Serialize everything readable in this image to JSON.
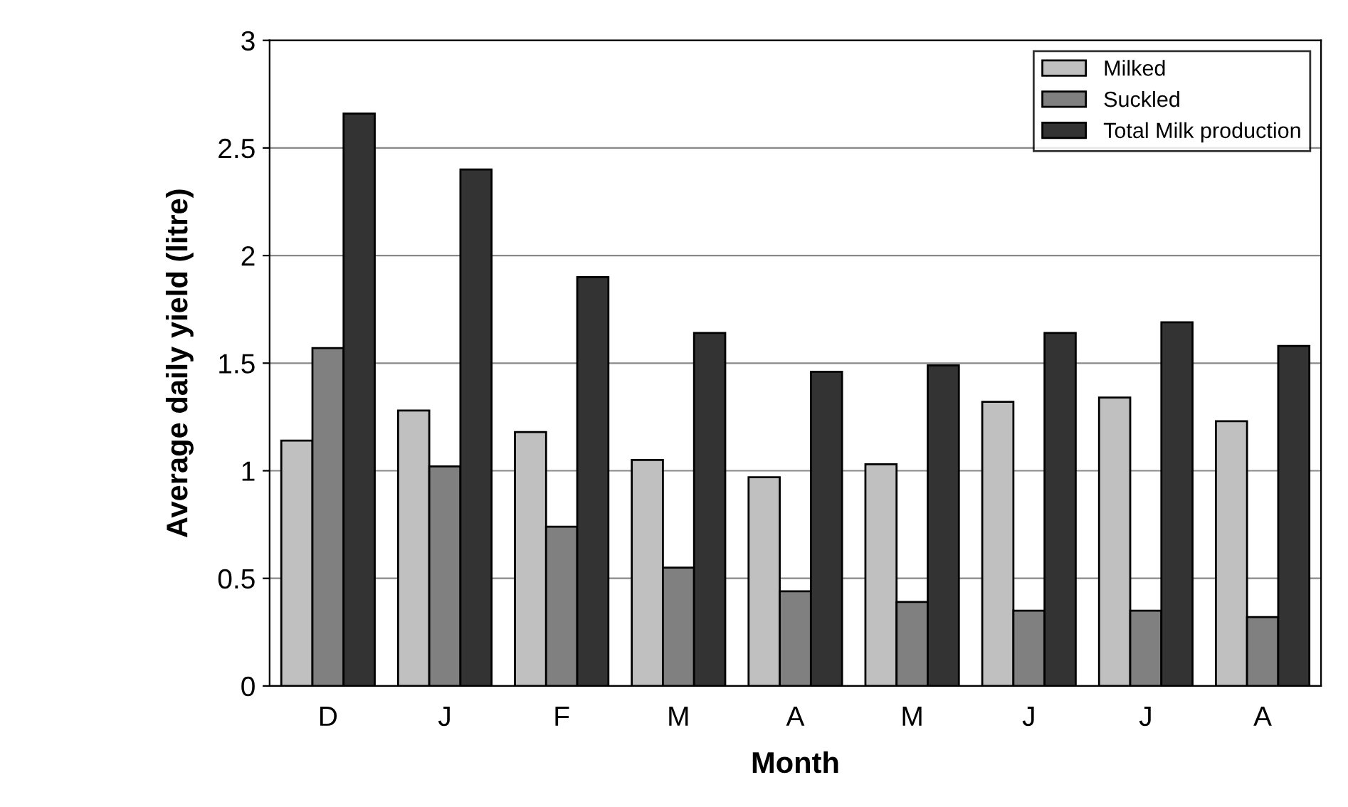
{
  "chart_data": {
    "type": "bar",
    "xlabel": "Month",
    "ylabel": "Average daily yield (litre)",
    "categories": [
      "D",
      "J",
      "F",
      "M",
      "A",
      "M",
      "J",
      "J",
      "A"
    ],
    "series": [
      {
        "name": "Milked",
        "color": "#c0c0c0",
        "values": [
          1.14,
          1.28,
          1.18,
          1.05,
          0.97,
          1.03,
          1.32,
          1.34,
          1.23
        ]
      },
      {
        "name": "Suckled",
        "color": "#808080",
        "values": [
          1.57,
          1.02,
          0.74,
          0.55,
          0.44,
          0.39,
          0.35,
          0.35,
          0.32
        ]
      },
      {
        "name": "Total Milk production",
        "color": "#333333",
        "values": [
          2.66,
          2.4,
          1.9,
          1.64,
          1.46,
          1.49,
          1.64,
          1.69,
          1.58
        ]
      }
    ],
    "ylim": [
      0,
      3
    ],
    "yticks": [
      0,
      0.5,
      1,
      1.5,
      2,
      2.5,
      3
    ],
    "grid": "y",
    "legend": "top right"
  }
}
